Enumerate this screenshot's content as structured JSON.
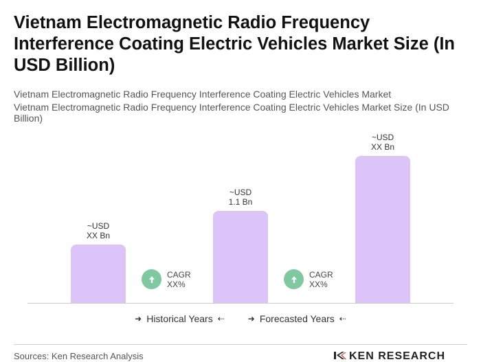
{
  "title": "Vietnam Electromagnetic Radio Frequency Interference Coating Electric Vehicles Market Size (In USD Billion)",
  "subtitle_1": "Vietnam Electromagnetic Radio Frequency Interference Coating Electric Vehicles Market",
  "subtitle_2": "Vietnam Electromagnetic Radio Frequency Interference Coating Electric Vehicles Market Size (In USD Billion)",
  "chart_data": {
    "type": "bar",
    "title": "Vietnam Electromagnetic Radio Frequency Interference Coating Electric Vehicles Market Size (In USD Billion)",
    "categories": [
      "",
      "",
      ""
    ],
    "values": [
      0.7,
      1.1,
      1.75
    ],
    "value_labels": [
      {
        "line1": "~USD",
        "line2": "XX Bn"
      },
      {
        "line1": "~USD",
        "line2": "1.1 Bn"
      },
      {
        "line1": "~USD",
        "line2": "XX Bn"
      }
    ],
    "ylim": [
      0,
      2.3
    ],
    "bar_color": "#dcc3f8",
    "cagr": [
      {
        "label": "CAGR",
        "value": "XX%"
      },
      {
        "label": "CAGR",
        "value": "XX%"
      }
    ],
    "cagr_color": "#7ec9a0",
    "legend": [
      {
        "label": "Historical Years"
      },
      {
        "label": "Forecasted Years"
      }
    ],
    "grid": false
  },
  "footer": {
    "source": "Sources: Ken Research Analysis",
    "brand": "KEN RESEARCH"
  }
}
